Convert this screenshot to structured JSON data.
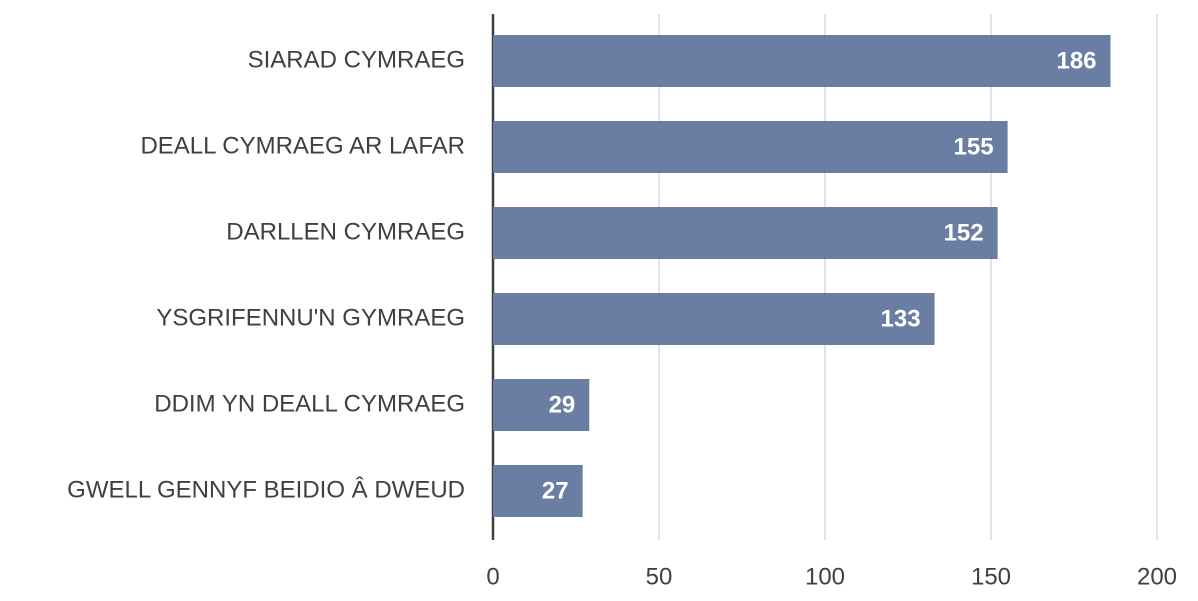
{
  "chart_data": {
    "type": "bar",
    "orientation": "horizontal",
    "categories": [
      "SIARAD CYMRAEG",
      "DEALL CYMRAEG AR LAFAR",
      "DARLLEN CYMRAEG",
      "YSGRIFENNU'N GYMRAEG",
      "DDIM YN DEALL CYMRAEG",
      "GWELL GENNYF BEIDIO Â DWEUD"
    ],
    "values": [
      186,
      155,
      152,
      133,
      29,
      27
    ],
    "color": "#6a7ea4",
    "xlim": [
      0,
      200
    ],
    "xticks": [
      0,
      50,
      100,
      150,
      200
    ],
    "grid": true
  }
}
